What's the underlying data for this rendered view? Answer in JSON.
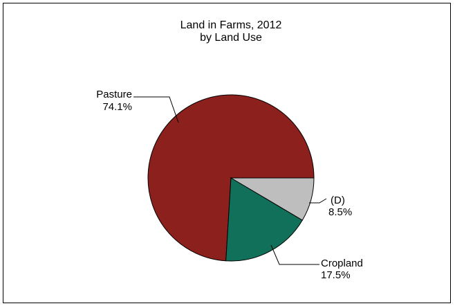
{
  "chart_data": {
    "type": "pie",
    "title": "Land in Farms, 2012",
    "subtitle": "by Land Use",
    "slices": [
      {
        "label": "Pasture",
        "percent_label": "74.1%",
        "value": 74.1,
        "color": "#8B201C"
      },
      {
        "label": "Cropland",
        "percent_label": "17.5%",
        "value": 17.5,
        "color": "#11705A"
      },
      {
        "label": "(D)",
        "percent_label": "8.5%",
        "value": 8.5,
        "color": "#BEBEBE"
      }
    ],
    "start_angle_deg": 0,
    "direction": "counterclockwise",
    "legend": "none"
  }
}
